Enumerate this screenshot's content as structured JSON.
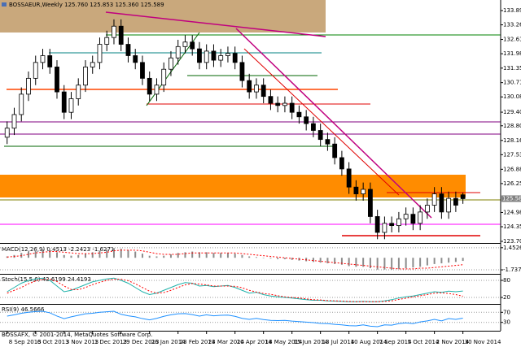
{
  "chart_data": [
    {
      "type": "candlestick",
      "title": "BOSSAEUR,Weekly 125.760 125.853 125.360 125.589",
      "open": [
        128.3,
        128.7,
        129.3,
        130.2,
        130.9,
        131.6,
        131.9,
        131.4,
        130.3,
        129.4,
        130.0,
        130.6,
        131.4,
        131.6,
        132.4,
        132.7,
        133.2,
        132.4,
        131.9,
        131.6,
        130.9,
        130.2,
        130.6,
        131.3,
        131.8,
        132.3,
        132.5,
        132.2,
        131.6,
        132.1,
        131.7,
        131.9,
        132.0,
        131.6,
        130.8,
        130.3,
        130.6,
        130.1,
        129.8,
        129.7,
        129.8,
        129.4,
        129.2,
        128.9,
        128.6,
        128.2,
        128.0,
        127.4,
        126.9,
        126.1,
        125.8,
        126.0,
        124.8,
        124.1,
        124.5,
        124.4,
        124.7,
        124.9,
        124.5,
        125.0,
        125.3,
        125.8,
        125.0,
        125.6,
        125.76
      ],
      "high": [
        129.0,
        129.6,
        130.5,
        131.2,
        131.9,
        132.2,
        132.2,
        131.7,
        130.6,
        130.3,
        130.9,
        131.7,
        131.9,
        132.7,
        133.0,
        133.5,
        133.5,
        132.7,
        132.2,
        131.9,
        131.2,
        130.9,
        131.6,
        132.1,
        132.6,
        132.8,
        132.8,
        132.5,
        132.4,
        132.4,
        132.2,
        132.3,
        132.3,
        131.9,
        131.1,
        130.9,
        130.9,
        130.4,
        130.1,
        130.1,
        130.1,
        129.7,
        129.5,
        129.2,
        128.9,
        128.5,
        128.3,
        127.7,
        127.2,
        126.4,
        126.3,
        126.3,
        125.1,
        124.8,
        124.8,
        125.0,
        125.2,
        125.2,
        125.3,
        125.6,
        126.1,
        126.1,
        125.9,
        125.9,
        125.853
      ],
      "low": [
        128.0,
        128.4,
        129.0,
        129.9,
        130.6,
        131.3,
        131.1,
        130.0,
        129.1,
        129.1,
        129.7,
        130.3,
        131.1,
        131.3,
        132.1,
        132.4,
        132.1,
        131.6,
        131.3,
        130.6,
        129.9,
        129.9,
        130.3,
        131.0,
        131.5,
        132.0,
        131.9,
        131.3,
        131.3,
        131.4,
        131.4,
        131.6,
        131.3,
        130.5,
        130.0,
        130.0,
        129.8,
        129.5,
        129.4,
        129.4,
        129.1,
        128.9,
        128.6,
        128.3,
        127.9,
        127.7,
        127.1,
        126.6,
        125.8,
        125.5,
        125.5,
        124.5,
        123.8,
        123.8,
        124.1,
        124.1,
        124.4,
        124.2,
        124.2,
        124.7,
        125.0,
        124.7,
        124.7,
        125.0,
        125.36
      ],
      "close": [
        128.7,
        129.3,
        130.2,
        130.9,
        131.6,
        131.9,
        131.4,
        130.3,
        129.4,
        130.0,
        130.6,
        131.4,
        131.6,
        132.4,
        132.7,
        133.2,
        132.4,
        131.9,
        131.6,
        130.9,
        130.2,
        130.6,
        131.3,
        131.8,
        132.3,
        132.5,
        132.2,
        131.6,
        132.1,
        131.7,
        131.9,
        132.0,
        131.6,
        130.8,
        130.3,
        130.6,
        130.1,
        129.8,
        129.7,
        129.8,
        129.4,
        129.2,
        128.9,
        128.6,
        128.2,
        128.0,
        127.4,
        126.9,
        126.1,
        125.8,
        126.0,
        124.8,
        124.1,
        124.5,
        124.4,
        124.7,
        124.9,
        124.5,
        125.0,
        125.3,
        125.8,
        125.0,
        125.6,
        125.3,
        125.589
      ],
      "up_color": "#ffffff",
      "down_color": "#000000",
      "xlim": [
        -1,
        69.3
      ],
      "ylim": [
        123.633,
        134.356
      ],
      "yticks": [
        {
          "value": 133.89,
          "label": "133.890"
        },
        {
          "value": 133.26,
          "label": "133.260"
        },
        132.615,
        131.985,
        {
          "value": 131.35,
          "label": "131.350"
        },
        {
          "value": 130.71,
          "label": "130.710"
        },
        {
          "value": 130.08,
          "label": "130.080"
        },
        129.405,
        128.805,
        {
          "value": 128.16,
          "label": "128.160"
        },
        {
          "value": 127.53,
          "label": "127.530"
        },
        126.885,
        126.255,
        {
          "value": 124.98,
          "label": "124.980"
        },
        {
          "value": 124.35,
          "label": "124.350"
        },
        123.705
      ],
      "xticks": [
        {
          "value": 0,
          "label": "8 Sep 2013"
        },
        {
          "value": 4,
          "label": "6 Oct 2013"
        },
        {
          "value": 8,
          "label": "3 Nov 2013"
        },
        {
          "value": 12,
          "label": "1 Dec 2013"
        },
        {
          "value": 16,
          "label": "29 Dec 2013"
        },
        {
          "value": 20,
          "label": "26 Jan 2014"
        },
        {
          "value": 24,
          "label": "23 Feb 2014"
        },
        {
          "value": 28,
          "label": "23 Mar 2014"
        },
        {
          "value": 32,
          "label": "20 Apr 2014"
        },
        {
          "value": 36,
          "label": "18 May 2014"
        },
        {
          "value": 40,
          "label": "15 Jun 2014"
        },
        {
          "value": 44,
          "label": "13 Jul 2014"
        },
        {
          "value": 48,
          "label": "10 Aug 2014"
        },
        {
          "value": 52,
          "label": "7 Sep 2014"
        },
        {
          "value": 56,
          "label": "5 Oct 2014"
        },
        {
          "value": 60,
          "label": "2 Nov 2014"
        },
        {
          "value": 64,
          "label": "30 Nov 2014"
        }
      ]
    },
    {
      "type": "macd",
      "title": "MACD(12,26,9) 0.4513 -2.2423 -1.6271",
      "histogram": [
        0.2,
        0.4,
        0.7,
        0.9,
        1.1,
        1.2,
        1.1,
        0.8,
        0.4,
        0.3,
        0.4,
        0.6,
        0.8,
        1.0,
        1.2,
        1.4,
        1.3,
        1.1,
        0.9,
        0.6,
        0.3,
        0.2,
        0.3,
        0.5,
        0.7,
        0.8,
        0.9,
        0.8,
        0.8,
        0.7,
        0.7,
        0.7,
        0.6,
        0.4,
        0.2,
        0.1,
        0,
        -0.1,
        -0.2,
        -0.2,
        -0.3,
        -0.4,
        -0.5,
        -0.6,
        -0.7,
        -0.8,
        -0.9,
        -1.0,
        -1.2,
        -1.3,
        -1.3,
        -1.5,
        -1.7,
        -1.7,
        -1.7,
        -1.6,
        -1.5,
        -1.4,
        -1.3,
        -1.1,
        -0.9,
        -0.8,
        -0.7,
        -0.6,
        -0.45
      ],
      "signal": [
        0.1,
        0.2,
        0.3,
        0.5,
        0.7,
        0.8,
        0.9,
        0.9,
        0.8,
        0.7,
        0.6,
        0.6,
        0.6,
        0.7,
        0.8,
        1.0,
        1.1,
        1.1,
        1.1,
        1.0,
        0.8,
        0.6,
        0.5,
        0.5,
        0.5,
        0.6,
        0.7,
        0.7,
        0.7,
        0.7,
        0.7,
        0.7,
        0.7,
        0.6,
        0.5,
        0.4,
        0.3,
        0.2,
        0.1,
        0,
        -0.1,
        -0.2,
        -0.3,
        -0.4,
        -0.5,
        -0.6,
        -0.7,
        -0.8,
        -0.9,
        -1.0,
        -1.1,
        -1.2,
        -1.3,
        -1.4,
        -1.5,
        -1.6,
        -1.6,
        -1.6,
        -1.5,
        -1.5,
        -1.4,
        -1.3,
        -1.2,
        -1.1,
        -1.0
      ],
      "bar_color": "#8c8c8c",
      "line_color": "#ff0000",
      "ylim": [
        -2.2,
        1.9
      ],
      "yticks": [
        1.4526,
        -1.7373
      ]
    },
    {
      "type": "line",
      "title": "Stoch(15,5,6) 42.6199 24.4193",
      "series": [
        {
          "color": "#20b2aa",
          "values": [
            40,
            55,
            70,
            80,
            85,
            88,
            80,
            60,
            40,
            45,
            55,
            65,
            75,
            80,
            85,
            88,
            80,
            70,
            55,
            40,
            30,
            35,
            45,
            55,
            65,
            72,
            70,
            60,
            62,
            58,
            60,
            62,
            55,
            45,
            35,
            38,
            30,
            25,
            22,
            20,
            18,
            15,
            12,
            10,
            10,
            8,
            7,
            6,
            5,
            5,
            6,
            5,
            5,
            8,
            12,
            18,
            22,
            25,
            30,
            35,
            40,
            38,
            42,
            40,
            42.6
          ]
        },
        {
          "color": "#ff0000",
          "values": [
            35,
            45,
            55,
            68,
            78,
            84,
            84,
            76,
            60,
            48,
            47,
            55,
            65,
            73,
            80,
            84,
            84,
            79,
            68,
            55,
            42,
            35,
            37,
            45,
            55,
            64,
            69,
            67,
            64,
            60,
            60,
            60,
            59,
            54,
            45,
            39,
            34,
            31,
            26,
            22,
            20,
            18,
            15,
            12,
            11,
            9,
            8,
            7,
            6,
            5,
            5,
            5,
            5,
            6,
            8,
            13,
            17,
            22,
            26,
            30,
            35,
            36,
            34,
            30,
            24.4
          ]
        }
      ],
      "ylim": [
        0,
        100
      ],
      "yticks": [
        80,
        20
      ]
    },
    {
      "type": "line",
      "title": "RSI(9) 46.5666",
      "series": [
        {
          "color": "#1e90ff",
          "values": [
            55,
            60,
            66,
            70,
            73,
            74,
            68,
            55,
            45,
            52,
            58,
            64,
            66,
            70,
            72,
            74,
            62,
            56,
            52,
            45,
            40,
            46,
            54,
            60,
            64,
            65,
            61,
            55,
            60,
            56,
            58,
            59,
            54,
            46,
            42,
            46,
            41,
            38,
            37,
            38,
            35,
            33,
            31,
            29,
            26,
            25,
            22,
            20,
            17,
            16,
            20,
            15,
            13,
            20,
            19,
            25,
            28,
            25,
            32,
            36,
            42,
            36,
            45,
            42,
            46.6
          ]
        }
      ],
      "ylim": [
        0,
        100
      ],
      "yticks": [
        70,
        30
      ]
    }
  ],
  "footer": "BOSSAFX, © 2001-2014, MetaQuotes Software Corp."
}
